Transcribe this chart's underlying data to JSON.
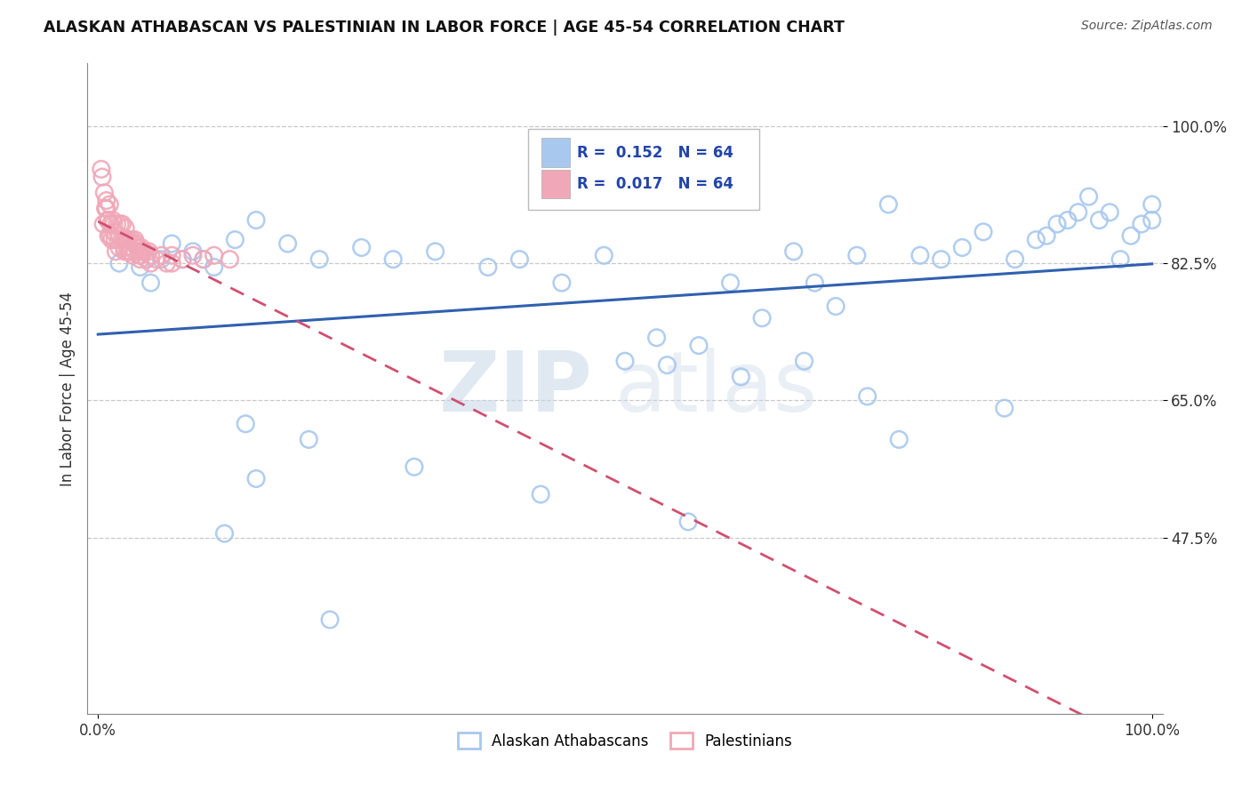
{
  "title": "ALASKAN ATHABASCAN VS PALESTINIAN IN LABOR FORCE | AGE 45-54 CORRELATION CHART",
  "source": "Source: ZipAtlas.com",
  "ylabel": "In Labor Force | Age 45-54",
  "xlim": [
    -0.01,
    1.01
  ],
  "ylim": [
    0.25,
    1.08
  ],
  "ytick_positions": [
    0.475,
    0.65,
    0.825,
    1.0
  ],
  "ytick_labels": [
    "47.5%",
    "65.0%",
    "82.5%",
    "100.0%"
  ],
  "legend_r1": "0.152",
  "legend_n1": "64",
  "legend_r2": "0.017",
  "legend_n2": "64",
  "legend_label1": "Alaskan Athabascans",
  "legend_label2": "Palestinians",
  "color_blue": "#a8c8ee",
  "color_pink": "#f0a8b8",
  "trend_blue": "#3060b0",
  "trend_pink": "#d05070",
  "background": "#ffffff",
  "grid_color": "#c8c8c8",
  "watermark_zip": "ZIP",
  "watermark_atlas": "atlas",
  "blue_x": [
    0.02,
    0.03,
    0.04,
    0.04,
    0.05,
    0.06,
    0.07,
    0.08,
    0.09,
    0.1,
    0.11,
    0.13,
    0.15,
    0.18,
    0.21,
    0.25,
    0.28,
    0.32,
    0.37,
    0.4,
    0.44,
    0.48,
    0.5,
    0.53,
    0.57,
    0.6,
    0.63,
    0.66,
    0.68,
    0.7,
    0.72,
    0.75,
    0.78,
    0.8,
    0.82,
    0.84,
    0.87,
    0.89,
    0.9,
    0.91,
    0.92,
    0.93,
    0.94,
    0.95,
    0.96,
    0.97,
    0.98,
    0.99,
    1.0,
    1.0,
    0.54,
    0.61,
    0.67,
    0.73,
    0.14,
    0.2,
    0.3,
    0.42,
    0.56,
    0.76,
    0.86,
    0.12,
    0.15,
    0.22
  ],
  "blue_y": [
    0.825,
    0.84,
    0.835,
    0.82,
    0.8,
    0.83,
    0.85,
    0.83,
    0.84,
    0.83,
    0.82,
    0.855,
    0.88,
    0.85,
    0.83,
    0.845,
    0.83,
    0.84,
    0.82,
    0.83,
    0.8,
    0.835,
    0.7,
    0.73,
    0.72,
    0.8,
    0.755,
    0.84,
    0.8,
    0.77,
    0.835,
    0.9,
    0.835,
    0.83,
    0.845,
    0.865,
    0.83,
    0.855,
    0.86,
    0.875,
    0.88,
    0.89,
    0.91,
    0.88,
    0.89,
    0.83,
    0.86,
    0.875,
    0.88,
    0.9,
    0.695,
    0.68,
    0.7,
    0.655,
    0.62,
    0.6,
    0.565,
    0.53,
    0.495,
    0.6,
    0.64,
    0.48,
    0.55,
    0.37
  ],
  "pink_x": [
    0.005,
    0.007,
    0.008,
    0.009,
    0.01,
    0.011,
    0.012,
    0.013,
    0.014,
    0.015,
    0.016,
    0.017,
    0.018,
    0.019,
    0.02,
    0.021,
    0.022,
    0.023,
    0.024,
    0.025,
    0.026,
    0.027,
    0.028,
    0.029,
    0.03,
    0.031,
    0.032,
    0.033,
    0.034,
    0.035,
    0.036,
    0.037,
    0.038,
    0.039,
    0.04,
    0.041,
    0.042,
    0.044,
    0.046,
    0.048,
    0.05,
    0.055,
    0.06,
    0.065,
    0.07,
    0.08,
    0.09,
    0.1,
    0.11,
    0.125,
    0.004,
    0.006,
    0.008,
    0.01,
    0.015,
    0.02,
    0.025,
    0.03,
    0.04,
    0.05,
    0.07,
    0.003,
    0.012,
    0.035
  ],
  "pink_y": [
    0.875,
    0.895,
    0.905,
    0.88,
    0.86,
    0.9,
    0.875,
    0.855,
    0.88,
    0.865,
    0.855,
    0.84,
    0.875,
    0.855,
    0.845,
    0.875,
    0.855,
    0.875,
    0.855,
    0.84,
    0.87,
    0.855,
    0.84,
    0.855,
    0.84,
    0.845,
    0.855,
    0.835,
    0.85,
    0.84,
    0.85,
    0.845,
    0.845,
    0.84,
    0.835,
    0.845,
    0.84,
    0.84,
    0.83,
    0.84,
    0.835,
    0.83,
    0.835,
    0.825,
    0.835,
    0.83,
    0.835,
    0.83,
    0.835,
    0.83,
    0.935,
    0.915,
    0.895,
    0.88,
    0.875,
    0.86,
    0.845,
    0.84,
    0.83,
    0.825,
    0.825,
    0.945,
    0.86,
    0.855
  ]
}
